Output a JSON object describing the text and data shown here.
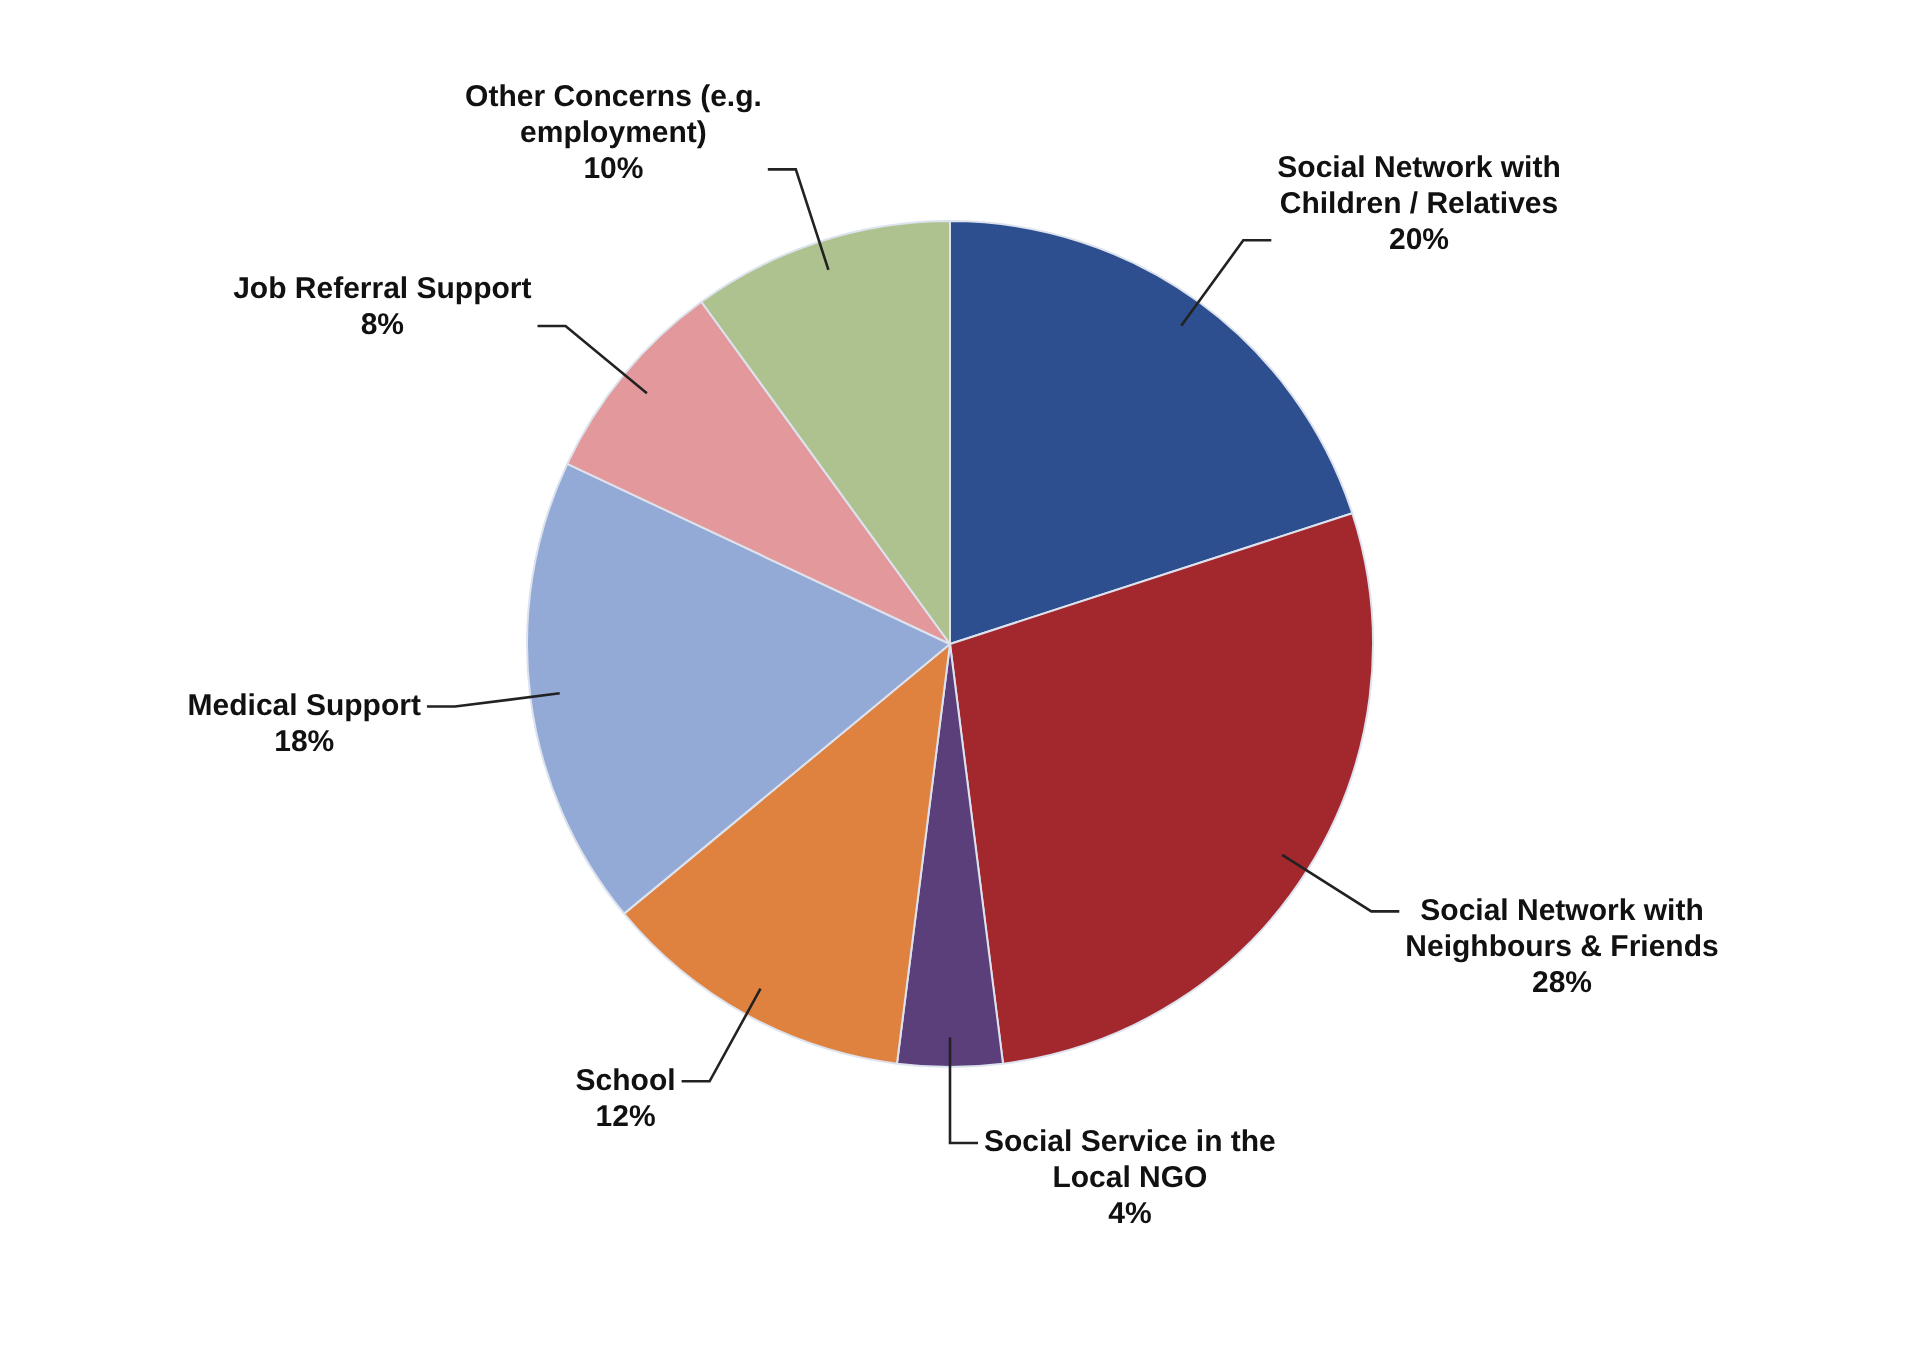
{
  "chart_data": {
    "type": "pie",
    "categories": [
      "Social Network with Children / Relatives",
      "Social Network with Neighbours & Friends",
      "Social Service in the Local NGO",
      "School",
      "Medical Support",
      "Job Referral Support",
      "Other Concerns (e.g. employment)"
    ],
    "values": [
      20,
      28,
      4,
      12,
      18,
      8,
      10
    ],
    "value_labels": [
      "20%",
      "28%",
      "4%",
      "12%",
      "18%",
      "8%",
      "10%"
    ],
    "colors": [
      "#2e4f8f",
      "#a3282e",
      "#5a3f7a",
      "#e0823f",
      "#93a9d6",
      "#e3999c",
      "#aec28f"
    ],
    "legend": false
  }
}
